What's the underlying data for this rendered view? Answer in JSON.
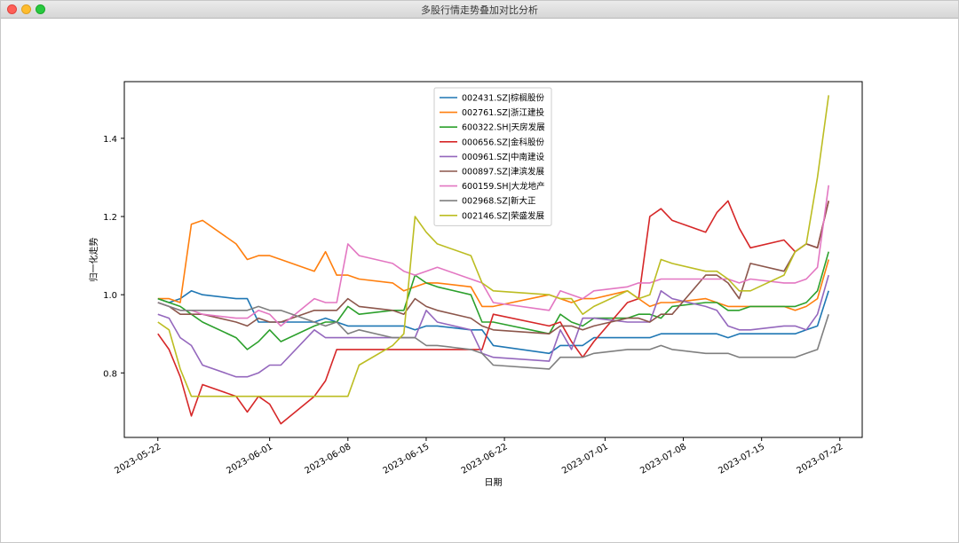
{
  "window": {
    "title": "多股行情走势叠加对比分析"
  },
  "chart_data": {
    "type": "line",
    "title": "",
    "xlabel": "日期",
    "ylabel": "归一化走势",
    "xlim": [
      "2023-05-19",
      "2023-07-24"
    ],
    "ylim": [
      0.635,
      1.545
    ],
    "xticks": [
      "2023-05-22",
      "2023-06-01",
      "2023-06-08",
      "2023-06-15",
      "2023-06-22",
      "2023-07-01",
      "2023-07-08",
      "2023-07-15",
      "2023-07-22"
    ],
    "yticks": [
      0.8,
      1.0,
      1.2,
      1.4
    ],
    "ytick_labels": [
      "0.8",
      "1.0",
      "1.2",
      "1.4"
    ],
    "legend_position": "upper-center",
    "x": [
      "2023-05-22",
      "2023-05-23",
      "2023-05-24",
      "2023-05-25",
      "2023-05-26",
      "2023-05-29",
      "2023-05-30",
      "2023-05-31",
      "2023-06-01",
      "2023-06-02",
      "2023-06-05",
      "2023-06-06",
      "2023-06-07",
      "2023-06-08",
      "2023-06-09",
      "2023-06-12",
      "2023-06-13",
      "2023-06-14",
      "2023-06-15",
      "2023-06-16",
      "2023-06-19",
      "2023-06-20",
      "2023-06-21",
      "2023-06-26",
      "2023-06-27",
      "2023-06-28",
      "2023-06-29",
      "2023-06-30",
      "2023-07-03",
      "2023-07-04",
      "2023-07-05",
      "2023-07-06",
      "2023-07-07",
      "2023-07-10",
      "2023-07-11",
      "2023-07-12",
      "2023-07-13",
      "2023-07-14",
      "2023-07-17",
      "2023-07-18",
      "2023-07-19",
      "2023-07-20",
      "2023-07-21"
    ],
    "series": [
      {
        "name": "002431.SZ|棕榈股份",
        "color": "#1f77b4",
        "values": [
          0.99,
          0.98,
          0.99,
          1.01,
          1.0,
          0.99,
          0.99,
          0.93,
          0.93,
          0.93,
          0.93,
          0.94,
          0.93,
          0.92,
          0.92,
          0.92,
          0.92,
          0.91,
          0.92,
          0.92,
          0.91,
          0.91,
          0.87,
          0.85,
          0.87,
          0.87,
          0.87,
          0.89,
          0.89,
          0.89,
          0.89,
          0.9,
          0.9,
          0.9,
          0.9,
          0.89,
          0.9,
          0.9,
          0.9,
          0.9,
          0.91,
          0.92,
          1.01
        ]
      },
      {
        "name": "002761.SZ|浙江建投",
        "color": "#ff7f0e",
        "values": [
          0.99,
          0.99,
          0.98,
          1.18,
          1.19,
          1.13,
          1.09,
          1.1,
          1.1,
          1.09,
          1.06,
          1.11,
          1.05,
          1.05,
          1.04,
          1.03,
          1.01,
          1.02,
          1.03,
          1.03,
          1.02,
          0.97,
          0.97,
          1.0,
          0.99,
          0.98,
          0.99,
          0.99,
          1.01,
          0.99,
          0.97,
          0.98,
          0.98,
          0.99,
          0.98,
          0.97,
          0.97,
          0.97,
          0.97,
          0.96,
          0.97,
          0.99,
          1.09
        ]
      },
      {
        "name": "600322.SH|天房发展",
        "color": "#2ca02c",
        "values": [
          0.99,
          0.98,
          0.97,
          0.95,
          0.93,
          0.89,
          0.86,
          0.88,
          0.91,
          0.88,
          0.92,
          0.93,
          0.93,
          0.97,
          0.95,
          0.96,
          0.96,
          1.05,
          1.03,
          1.02,
          1.0,
          0.93,
          0.93,
          0.9,
          0.95,
          0.93,
          0.92,
          0.94,
          0.94,
          0.95,
          0.95,
          0.94,
          0.97,
          0.98,
          0.98,
          0.96,
          0.96,
          0.97,
          0.97,
          0.97,
          0.98,
          1.01,
          1.11
        ]
      },
      {
        "name": "000656.SZ|金科股份",
        "color": "#d62728",
        "values": [
          0.9,
          0.86,
          0.79,
          0.69,
          0.77,
          0.74,
          0.7,
          0.74,
          0.72,
          0.67,
          0.74,
          0.78,
          0.86,
          0.86,
          0.86,
          0.86,
          0.86,
          0.86,
          0.86,
          0.86,
          0.86,
          0.86,
          0.95,
          0.92,
          0.93,
          0.88,
          0.84,
          0.88,
          0.98,
          0.99,
          1.2,
          1.22,
          1.19,
          1.16,
          1.21,
          1.24,
          1.17,
          1.12,
          1.14,
          1.11,
          1.13,
          1.12,
          1.24
        ]
      },
      {
        "name": "000961.SZ|中南建设",
        "color": "#9467bd",
        "values": [
          0.95,
          0.94,
          0.89,
          0.87,
          0.82,
          0.79,
          0.79,
          0.8,
          0.82,
          0.82,
          0.91,
          0.89,
          0.89,
          0.89,
          0.89,
          0.89,
          0.89,
          0.89,
          0.96,
          0.93,
          0.91,
          0.85,
          0.84,
          0.83,
          0.91,
          0.86,
          0.94,
          0.94,
          0.93,
          0.93,
          0.93,
          1.01,
          0.99,
          0.97,
          0.96,
          0.92,
          0.91,
          0.91,
          0.92,
          0.92,
          0.91,
          0.95,
          1.05
        ]
      },
      {
        "name": "000897.SZ|津滨发展",
        "color": "#8c564b",
        "values": [
          0.98,
          0.97,
          0.95,
          0.95,
          0.95,
          0.93,
          0.92,
          0.94,
          0.93,
          0.93,
          0.96,
          0.96,
          0.96,
          0.99,
          0.97,
          0.96,
          0.95,
          0.99,
          0.97,
          0.96,
          0.94,
          0.92,
          0.91,
          0.9,
          0.92,
          0.92,
          0.91,
          0.92,
          0.94,
          0.94,
          0.93,
          0.95,
          0.95,
          1.05,
          1.05,
          1.03,
          0.99,
          1.08,
          1.06,
          1.11,
          1.13,
          1.12,
          1.24
        ]
      },
      {
        "name": "600159.SH|大龙地产",
        "color": "#e377c2",
        "values": [
          0.98,
          0.97,
          0.96,
          0.96,
          0.95,
          0.94,
          0.94,
          0.96,
          0.95,
          0.92,
          0.99,
          0.98,
          0.98,
          1.13,
          1.1,
          1.08,
          1.06,
          1.05,
          1.06,
          1.07,
          1.04,
          1.03,
          0.98,
          0.96,
          1.01,
          1.0,
          0.99,
          1.01,
          1.02,
          1.03,
          1.03,
          1.04,
          1.04,
          1.04,
          1.04,
          1.04,
          1.03,
          1.04,
          1.03,
          1.03,
          1.04,
          1.07,
          1.28
        ]
      },
      {
        "name": "002968.SZ|新大正",
        "color": "#7f7f7f",
        "values": [
          0.98,
          0.97,
          0.96,
          0.96,
          0.96,
          0.96,
          0.96,
          0.97,
          0.96,
          0.96,
          0.93,
          0.92,
          0.93,
          0.9,
          0.91,
          0.89,
          0.89,
          0.89,
          0.87,
          0.87,
          0.86,
          0.85,
          0.82,
          0.81,
          0.84,
          0.84,
          0.84,
          0.85,
          0.86,
          0.86,
          0.86,
          0.87,
          0.86,
          0.85,
          0.85,
          0.85,
          0.84,
          0.84,
          0.84,
          0.84,
          0.85,
          0.86,
          0.95
        ]
      },
      {
        "name": "002146.SZ|荣盛发展",
        "color": "#bcbd22",
        "values": [
          0.93,
          0.91,
          0.81,
          0.74,
          0.74,
          0.74,
          0.74,
          0.74,
          0.74,
          0.74,
          0.74,
          0.74,
          0.74,
          0.74,
          0.82,
          0.87,
          0.9,
          1.2,
          1.16,
          1.13,
          1.1,
          1.03,
          1.01,
          1.0,
          0.99,
          0.99,
          0.95,
          0.97,
          1.01,
          0.99,
          1.0,
          1.09,
          1.08,
          1.06,
          1.06,
          1.04,
          1.01,
          1.01,
          1.05,
          1.11,
          1.13,
          1.3,
          1.51
        ]
      }
    ]
  }
}
